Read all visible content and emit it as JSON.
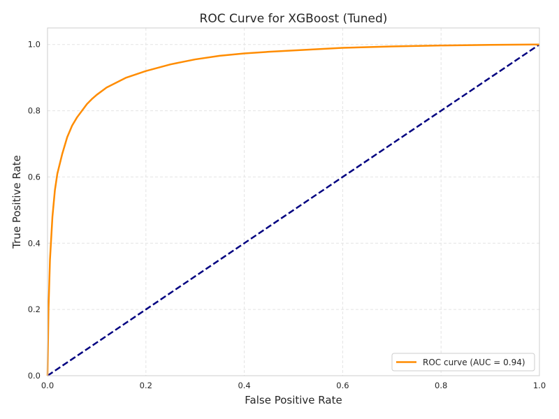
{
  "chart_data": {
    "type": "line",
    "title": "ROC Curve for XGBoost (Tuned)",
    "xlabel": "False Positive Rate",
    "ylabel": "True Positive Rate",
    "xlim": [
      0.0,
      1.0
    ],
    "ylim": [
      0.0,
      1.05
    ],
    "x_ticks": [
      0.0,
      0.2,
      0.4,
      0.6,
      0.8,
      1.0
    ],
    "y_ticks": [
      0.0,
      0.2,
      0.4,
      0.6,
      0.8,
      1.0
    ],
    "x_tick_labels": [
      "0.0",
      "0.2",
      "0.4",
      "0.6",
      "0.8",
      "1.0"
    ],
    "y_tick_labels": [
      "0.0",
      "0.2",
      "0.4",
      "0.6",
      "0.8",
      "1.0"
    ],
    "grid": true,
    "legend_position": "lower-right",
    "series": [
      {
        "name": "ROC curve (AUC = 0.94)",
        "color": "#ff8c00",
        "style": "solid",
        "x": [
          0.0,
          0.002,
          0.005,
          0.01,
          0.015,
          0.02,
          0.03,
          0.04,
          0.05,
          0.06,
          0.07,
          0.08,
          0.09,
          0.1,
          0.12,
          0.14,
          0.16,
          0.18,
          0.2,
          0.25,
          0.3,
          0.35,
          0.4,
          0.45,
          0.5,
          0.6,
          0.7,
          0.8,
          0.9,
          1.0
        ],
        "y": [
          0.0,
          0.2,
          0.35,
          0.48,
          0.56,
          0.61,
          0.67,
          0.72,
          0.755,
          0.78,
          0.8,
          0.82,
          0.835,
          0.848,
          0.87,
          0.885,
          0.9,
          0.91,
          0.92,
          0.94,
          0.955,
          0.966,
          0.973,
          0.978,
          0.982,
          0.99,
          0.994,
          0.997,
          0.999,
          1.0
        ]
      },
      {
        "name": "",
        "color": "#000080",
        "style": "dashed",
        "x": [
          0.0,
          1.0
        ],
        "y": [
          0.0,
          1.0
        ]
      }
    ],
    "legend": [
      {
        "label": "ROC curve (AUC = 0.94)",
        "color": "#ff8c00"
      }
    ]
  }
}
